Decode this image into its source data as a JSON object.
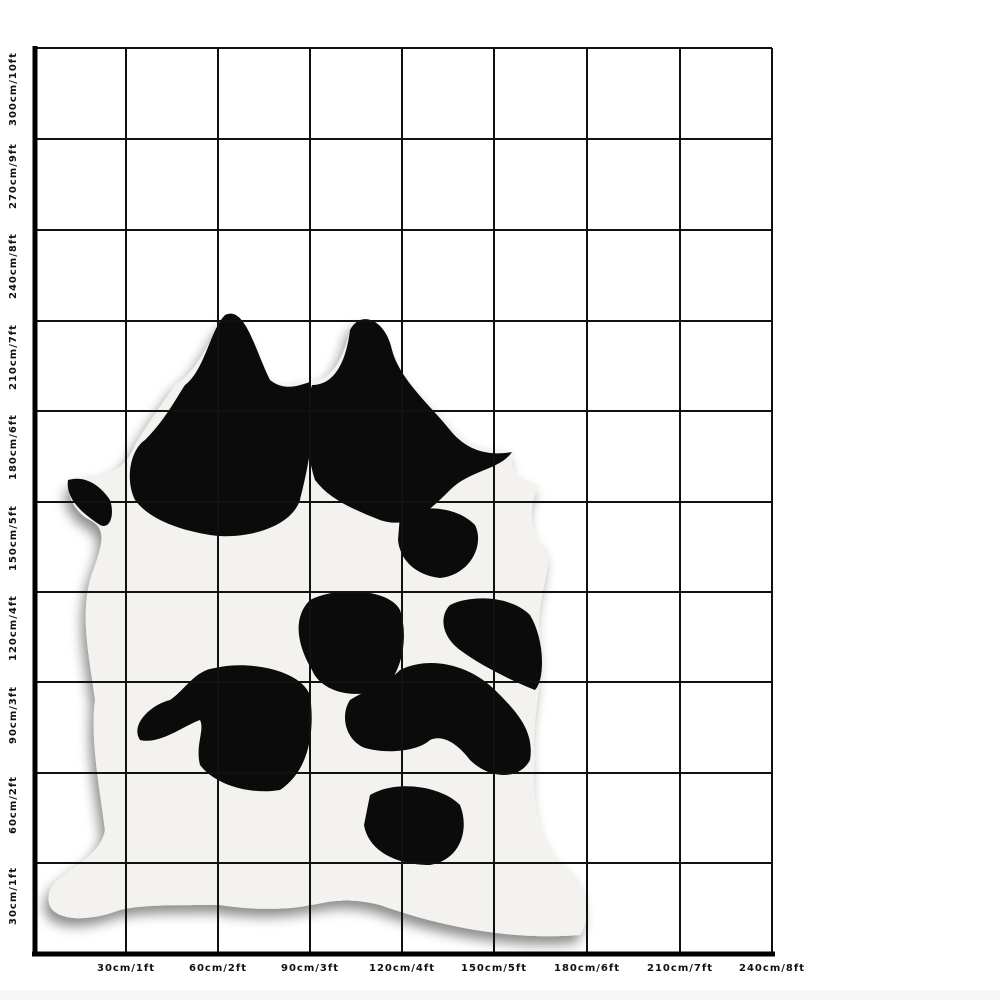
{
  "image": {
    "subject": "cowhide-rug",
    "colors": {
      "hide_white": "#f4f2ee",
      "hide_black": "#0b0b0b",
      "grid": "#111111"
    }
  },
  "y_axis_labels": [
    "300cm/10ft",
    "270cm/9ft",
    "240cm/8ft",
    "210cm/7ft",
    "180cm/6ft",
    "150cm/5ft",
    "120cm/4ft",
    "90cm/3ft",
    "60cm/2ft",
    "30cm/1ft"
  ],
  "x_axis_labels": [
    "30cm/1ft",
    "60cm/2ft",
    "90cm/3ft",
    "120cm/4ft",
    "150cm/5ft",
    "180cm/6ft",
    "210cm/7ft",
    "240cm/8ft"
  ]
}
